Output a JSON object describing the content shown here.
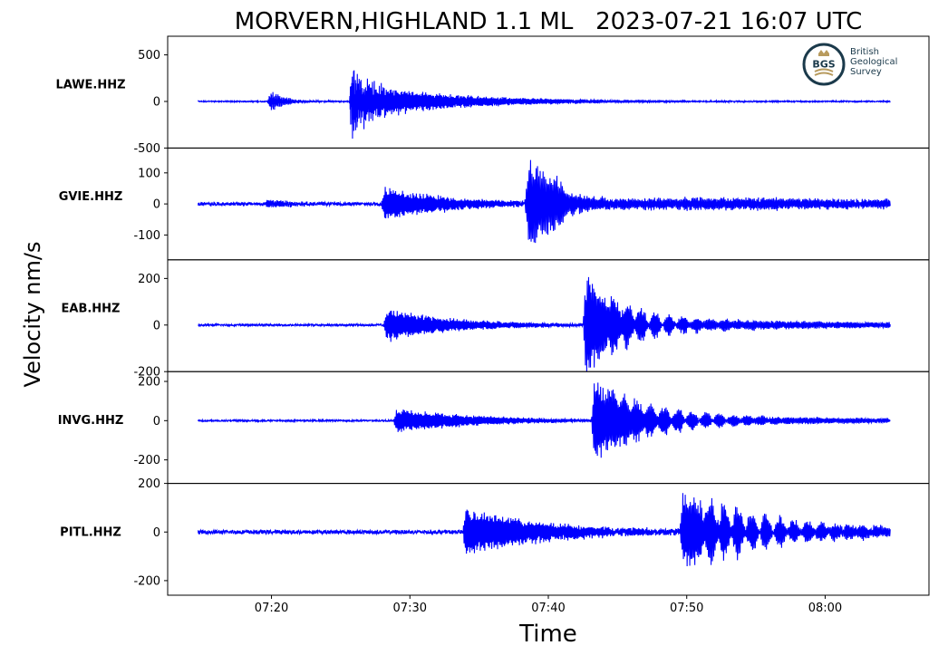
{
  "chart_data": {
    "type": "line",
    "title": "MORVERN,HIGHLAND 1.1 ML   2023-07-21 16:07 UTC",
    "xlabel": "Time",
    "ylabel": "Velocity nm/s",
    "x_unit": "minutes after 07:00",
    "xlim": [
      12.5,
      67.5
    ],
    "xticks": [
      {
        "value": 20,
        "label": "07:20"
      },
      {
        "value": 30,
        "label": "07:30"
      },
      {
        "value": 40,
        "label": "07:40"
      },
      {
        "value": 50,
        "label": "07:50"
      },
      {
        "value": 60,
        "label": "08:00"
      }
    ],
    "series_color": "#0000ff",
    "record_start": 14.7,
    "record_end": 64.7,
    "panels": [
      {
        "station": "LAWE.HHZ",
        "ylim": [
          -500,
          700
        ],
        "yticks": [
          {
            "value": 500,
            "label": "500"
          },
          {
            "value": 0,
            "label": "0"
          },
          {
            "value": -500,
            "label": "-500"
          }
        ],
        "noise_amp": 6,
        "arrivals": [
          {
            "time": 19.7,
            "amp": 150,
            "decay": 1.2,
            "freq": 30
          },
          {
            "time": 25.6,
            "amp": 640,
            "decay": 1.0,
            "freq": 22
          },
          {
            "time": 26.5,
            "amp": 200,
            "decay": 7.0,
            "freq": 14
          }
        ]
      },
      {
        "station": "GVIE.HHZ",
        "ylim": [
          -180,
          180
        ],
        "yticks": [
          {
            "value": 100,
            "label": "100"
          },
          {
            "value": 0,
            "label": "0"
          },
          {
            "value": -100,
            "label": "-100"
          }
        ],
        "noise_amp": 5,
        "arrivals": [
          {
            "time": 19.5,
            "amp": 18,
            "decay": 2.0,
            "freq": 18
          },
          {
            "time": 27.9,
            "amp": 60,
            "decay": 5.0,
            "freq": 12
          },
          {
            "time": 38.3,
            "amp": 160,
            "decay": 4.5,
            "freq": 10
          },
          {
            "time": 41.0,
            "amp": 50,
            "decay": 18.0,
            "freq": 10
          }
        ]
      },
      {
        "station": "EAB.HHZ",
        "ylim": [
          -200,
          280
        ],
        "yticks": [
          {
            "value": 200,
            "label": "200"
          },
          {
            "value": 0,
            "label": "0"
          },
          {
            "value": -200,
            "label": "-200"
          }
        ],
        "noise_amp": 4,
        "arrivals": [
          {
            "time": 28.1,
            "amp": 80,
            "decay": 5.0,
            "freq": 12
          },
          {
            "time": 42.5,
            "amp": 270,
            "decay": 2.6,
            "freq": 11
          },
          {
            "time": 44.0,
            "amp": 40,
            "decay": 16.0,
            "freq": 10
          }
        ]
      },
      {
        "station": "INVG.HHZ",
        "ylim": [
          -320,
          250
        ],
        "yticks": [
          {
            "value": 200,
            "label": "200"
          },
          {
            "value": 0,
            "label": "0"
          },
          {
            "value": -200,
            "label": "-200"
          }
        ],
        "noise_amp": 4,
        "arrivals": [
          {
            "time": 28.8,
            "amp": 70,
            "decay": 6.0,
            "freq": 12
          },
          {
            "time": 43.1,
            "amp": 250,
            "decay": 3.5,
            "freq": 11
          },
          {
            "time": 45.0,
            "amp": 40,
            "decay": 16.0,
            "freq": 10
          }
        ]
      },
      {
        "station": "PITL.HHZ",
        "ylim": [
          -260,
          200
        ],
        "yticks": [
          {
            "value": 200,
            "label": "200"
          },
          {
            "value": 0,
            "label": "0"
          },
          {
            "value": -200,
            "label": "-200"
          }
        ],
        "noise_amp": 8,
        "arrivals": [
          {
            "time": 33.8,
            "amp": 110,
            "decay": 6.0,
            "freq": 12
          },
          {
            "time": 49.5,
            "amp": 200,
            "decay": 4.0,
            "freq": 11
          },
          {
            "time": 51.0,
            "amp": 60,
            "decay": 14.0,
            "freq": 10
          }
        ]
      }
    ]
  },
  "logo": {
    "mark": "BGS",
    "lines": [
      "British",
      "Geological",
      "Survey"
    ],
    "colors": {
      "ring": "#1b3a4b",
      "gold": "#b89b5e"
    }
  }
}
